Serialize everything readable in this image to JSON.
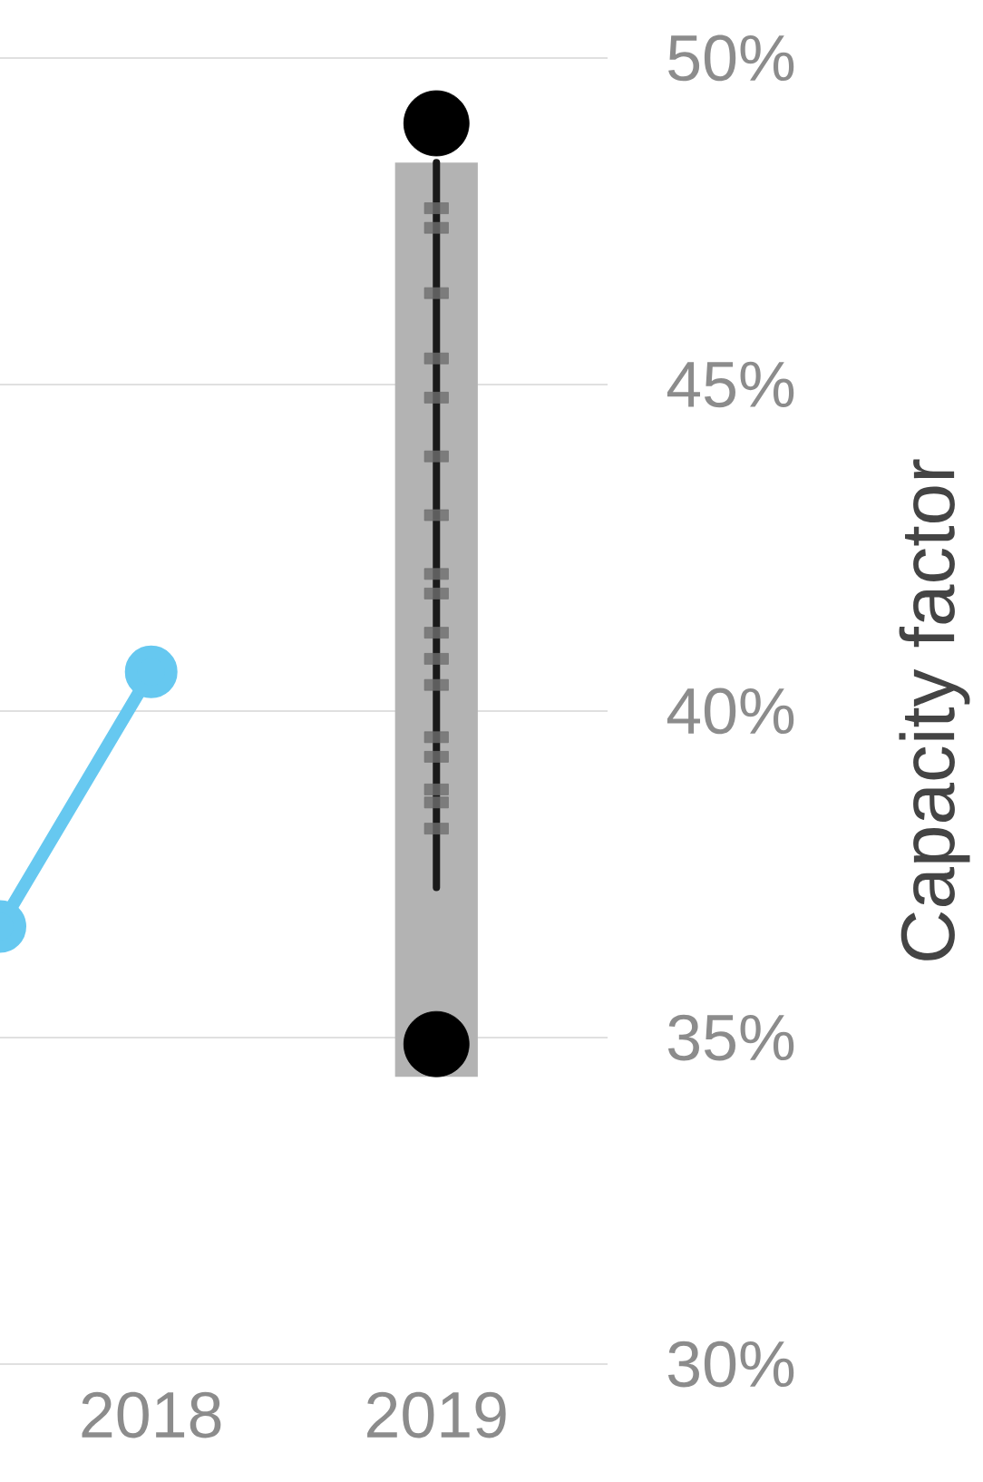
{
  "chart_data": {
    "type": "scatter",
    "ylabel": "Capacity factor",
    "xlim": [
      2017.47,
      2019.6
    ],
    "xticks": [
      2018,
      2019
    ],
    "ylim": [
      30,
      50
    ],
    "yticks": [
      {
        "value": 30,
        "label": "30%"
      },
      {
        "value": 35,
        "label": "35%"
      },
      {
        "value": 40,
        "label": "40%"
      },
      {
        "value": 45,
        "label": "45%"
      },
      {
        "value": 50,
        "label": "50%"
      }
    ],
    "grid": "y",
    "series": [
      {
        "type": "line",
        "color": "#66c8f0",
        "x": [
          2017.47,
          2018
        ],
        "values": [
          36.7,
          40.6
        ],
        "marker": "circle"
      },
      {
        "type": "bar",
        "color": "#b3b3b3",
        "x": [
          2019
        ],
        "base": [
          34.4
        ],
        "values": [
          14.0
        ]
      },
      {
        "type": "scatter",
        "color": "#6e6e6e",
        "marker": "square",
        "x": [
          2019,
          2019,
          2019,
          2019,
          2019,
          2019,
          2019,
          2019,
          2019,
          2019,
          2019,
          2019,
          2019,
          2019,
          2019,
          2019,
          2019
        ],
        "values": [
          47.7,
          47.4,
          46.4,
          45.4,
          44.8,
          43.9,
          43.0,
          42.1,
          41.8,
          41.2,
          40.8,
          40.4,
          39.6,
          39.3,
          38.8,
          38.6,
          38.2
        ]
      },
      {
        "type": "line",
        "color": "#1a1a1a",
        "x": [
          2019,
          2019
        ],
        "values": [
          48.4,
          37.3
        ]
      },
      {
        "color": "#000000",
        "x": [
          2019,
          2019
        ],
        "values": [
          49.0,
          34.9
        ],
        "marker": "circle"
      }
    ]
  }
}
